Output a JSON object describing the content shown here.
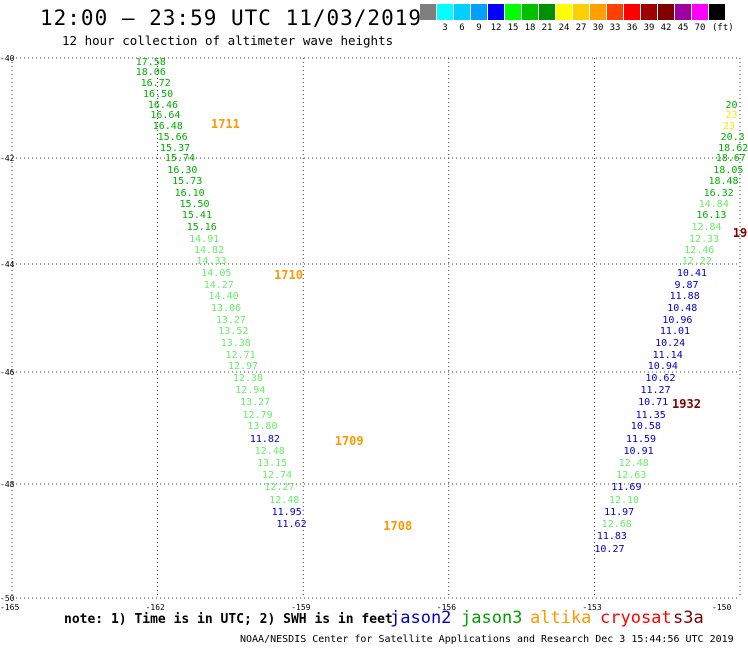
{
  "title": "12:00 – 23:59 UTC 11/03/2019",
  "subtitle": "12 hour collection of altimeter wave heights",
  "legend": {
    "unit": "(ft)",
    "bins": [
      {
        "label": "",
        "color": "#7f7f7f"
      },
      {
        "label": "3",
        "color": "#00ffff"
      },
      {
        "label": "6",
        "color": "#00d0ff"
      },
      {
        "label": "9",
        "color": "#00a0ff"
      },
      {
        "label": "12",
        "color": "#0000ff"
      },
      {
        "label": "15",
        "color": "#00ff00"
      },
      {
        "label": "18",
        "color": "#00c000"
      },
      {
        "label": "21",
        "color": "#009000"
      },
      {
        "label": "24",
        "color": "#ffff00"
      },
      {
        "label": "27",
        "color": "#ffd000"
      },
      {
        "label": "30",
        "color": "#ffa000"
      },
      {
        "label": "33",
        "color": "#ff4000"
      },
      {
        "label": "36",
        "color": "#ff0000"
      },
      {
        "label": "39",
        "color": "#a00000"
      },
      {
        "label": "42",
        "color": "#800000"
      },
      {
        "label": "45",
        "color": "#a000a0"
      },
      {
        "label": "70",
        "color": "#ff00ff"
      },
      {
        "label": "",
        "color": "#000000"
      }
    ]
  },
  "map": {
    "lat_labels": [
      "-40",
      "-42",
      "-44",
      "-46",
      "-48",
      "-50"
    ],
    "lon_labels": [
      "-165",
      "-162",
      "-159",
      "-156",
      "-153",
      "-150"
    ]
  },
  "chart_data": {
    "type": "scatter",
    "xlabel": "",
    "ylabel": "",
    "grid": true,
    "xlim": [
      -165,
      -150
    ],
    "ylim": [
      -50,
      -40
    ],
    "colors": {
      "green_dark": "#00b000",
      "green_light": "#66ee66",
      "blue": "#0000cc",
      "yellow": "#f0f000",
      "orange": "#ff9900",
      "maroon": "#800000"
    },
    "tracks": [
      {
        "name": "jason3",
        "points": [
          {
            "lon": -162.45,
            "lat": -40.1,
            "value": "17.58",
            "color": "green_dark"
          },
          {
            "lon": -162.45,
            "lat": -40.3,
            "value": "18.06",
            "color": "green_dark"
          },
          {
            "lon": -162.35,
            "lat": -40.51,
            "value": "16.72",
            "color": "green_dark"
          },
          {
            "lon": -162.3,
            "lat": -40.73,
            "value": "16.50",
            "color": "green_dark"
          },
          {
            "lon": -162.2,
            "lat": -40.95,
            "value": "16.46",
            "color": "green_dark"
          },
          {
            "lon": -162.15,
            "lat": -41.16,
            "value": "16.64",
            "color": "green_dark"
          },
          {
            "lon": -162.1,
            "lat": -41.38,
            "value": "16.48",
            "color": "green_dark"
          },
          {
            "lon": -162.0,
            "lat": -41.59,
            "value": "15.66",
            "color": "green_dark"
          },
          {
            "lon": -161.95,
            "lat": -41.81,
            "value": "15.37",
            "color": "green_dark"
          },
          {
            "lon": -161.85,
            "lat": -42.02,
            "value": "15.74",
            "color": "green_dark"
          },
          {
            "lon": -161.8,
            "lat": -42.24,
            "value": "16.30",
            "color": "green_dark"
          },
          {
            "lon": -161.7,
            "lat": -42.46,
            "value": "15.73",
            "color": "green_dark"
          },
          {
            "lon": -161.65,
            "lat": -42.67,
            "value": "16.10",
            "color": "green_dark"
          },
          {
            "lon": -161.55,
            "lat": -42.89,
            "value": "15.50",
            "color": "green_dark"
          },
          {
            "lon": -161.5,
            "lat": -43.1,
            "value": "15.41",
            "color": "green_dark"
          },
          {
            "lon": -161.4,
            "lat": -43.32,
            "value": "15.16",
            "color": "green_dark"
          },
          {
            "lon": -161.35,
            "lat": -43.54,
            "value": "14.91",
            "color": "green_light"
          },
          {
            "lon": -161.25,
            "lat": -43.75,
            "value": "14.82",
            "color": "green_light"
          },
          {
            "lon": -161.2,
            "lat": -43.97,
            "value": "14.33",
            "color": "green_light"
          },
          {
            "lon": -161.1,
            "lat": -44.18,
            "value": "14.05",
            "color": "green_light"
          },
          {
            "lon": -161.05,
            "lat": -44.4,
            "value": "14.27",
            "color": "green_light"
          },
          {
            "lon": -160.95,
            "lat": -44.62,
            "value": "14.40",
            "color": "green_light"
          },
          {
            "lon": -160.9,
            "lat": -44.83,
            "value": "13.06",
            "color": "green_light"
          },
          {
            "lon": -160.8,
            "lat": -45.05,
            "value": "13.27",
            "color": "green_light"
          },
          {
            "lon": -160.75,
            "lat": -45.26,
            "value": "13.52",
            "color": "green_light"
          },
          {
            "lon": -160.7,
            "lat": -45.48,
            "value": "13.38",
            "color": "green_light"
          },
          {
            "lon": -160.6,
            "lat": -45.7,
            "value": "12.71",
            "color": "green_light"
          },
          {
            "lon": -160.55,
            "lat": -45.91,
            "value": "12.97",
            "color": "green_light"
          },
          {
            "lon": -160.45,
            "lat": -46.13,
            "value": "12.38",
            "color": "green_light"
          },
          {
            "lon": -160.4,
            "lat": -46.34,
            "value": "12.94",
            "color": "green_light"
          },
          {
            "lon": -160.3,
            "lat": -46.56,
            "value": "13.27",
            "color": "green_light"
          },
          {
            "lon": -160.25,
            "lat": -46.78,
            "value": "12.79",
            "color": "green_light"
          },
          {
            "lon": -160.15,
            "lat": -46.99,
            "value": "13.80",
            "color": "green_light"
          },
          {
            "lon": -160.1,
            "lat": -47.21,
            "value": "11.82",
            "color": "blue"
          },
          {
            "lon": -160.0,
            "lat": -47.42,
            "value": "12.48",
            "color": "green_light"
          },
          {
            "lon": -159.95,
            "lat": -47.64,
            "value": "13.15",
            "color": "green_light"
          },
          {
            "lon": -159.85,
            "lat": -47.86,
            "value": "12.74",
            "color": "green_light"
          },
          {
            "lon": -159.8,
            "lat": -48.07,
            "value": "12.27",
            "color": "green_light"
          },
          {
            "lon": -159.7,
            "lat": -48.29,
            "value": "12.48",
            "color": "green_light"
          },
          {
            "lon": -159.65,
            "lat": -48.5,
            "value": "11.95",
            "color": "blue"
          },
          {
            "lon": -159.55,
            "lat": -48.72,
            "value": "11.62",
            "color": "blue"
          }
        ]
      },
      {
        "name": "jason3-east",
        "points": [
          {
            "lon": -150.3,
            "lat": -40.95,
            "value": "20",
            "color": "green_dark"
          },
          {
            "lon": -150.3,
            "lat": -41.16,
            "value": "23",
            "color": "yellow"
          },
          {
            "lon": -150.35,
            "lat": -41.38,
            "value": "23",
            "color": "yellow"
          },
          {
            "lon": -150.4,
            "lat": -41.59,
            "value": "20.3",
            "color": "green_dark"
          },
          {
            "lon": -150.45,
            "lat": -41.81,
            "value": "18.62",
            "color": "green_dark"
          },
          {
            "lon": -150.5,
            "lat": -42.02,
            "value": "18.67",
            "color": "green_dark"
          },
          {
            "lon": -150.55,
            "lat": -42.24,
            "value": "18.05",
            "color": "green_dark"
          },
          {
            "lon": -150.65,
            "lat": -42.46,
            "value": "18.48",
            "color": "green_dark"
          },
          {
            "lon": -150.75,
            "lat": -42.67,
            "value": "16.32",
            "color": "green_dark"
          },
          {
            "lon": -150.85,
            "lat": -42.89,
            "value": "14.84",
            "color": "green_light"
          },
          {
            "lon": -150.9,
            "lat": -43.1,
            "value": "16.13",
            "color": "green_dark"
          },
          {
            "lon": -151.0,
            "lat": -43.32,
            "value": "12.84",
            "color": "green_light"
          },
          {
            "lon": -151.05,
            "lat": -43.54,
            "value": "12.33",
            "color": "green_light"
          },
          {
            "lon": -151.15,
            "lat": -43.75,
            "value": "12.46",
            "color": "green_light"
          },
          {
            "lon": -151.2,
            "lat": -43.97,
            "value": "12.22",
            "color": "green_light"
          },
          {
            "lon": -151.3,
            "lat": -44.18,
            "value": "10.41",
            "color": "blue"
          },
          {
            "lon": -151.35,
            "lat": -44.4,
            "value": "9.87",
            "color": "blue"
          },
          {
            "lon": -151.45,
            "lat": -44.62,
            "value": "11.88",
            "color": "blue"
          },
          {
            "lon": -151.5,
            "lat": -44.83,
            "value": "10.48",
            "color": "blue"
          },
          {
            "lon": -151.6,
            "lat": -45.05,
            "value": "10.96",
            "color": "blue"
          },
          {
            "lon": -151.65,
            "lat": -45.26,
            "value": "11.01",
            "color": "blue"
          },
          {
            "lon": -151.75,
            "lat": -45.48,
            "value": "10.24",
            "color": "blue"
          },
          {
            "lon": -151.8,
            "lat": -45.7,
            "value": "11.14",
            "color": "blue"
          },
          {
            "lon": -151.9,
            "lat": -45.91,
            "value": "10.94",
            "color": "blue"
          },
          {
            "lon": -151.95,
            "lat": -46.13,
            "value": "10.62",
            "color": "blue"
          },
          {
            "lon": -152.05,
            "lat": -46.34,
            "value": "11.27",
            "color": "blue"
          },
          {
            "lon": -152.1,
            "lat": -46.56,
            "value": "10.71",
            "color": "blue"
          },
          {
            "lon": -152.15,
            "lat": -46.78,
            "value": "11.35",
            "color": "blue"
          },
          {
            "lon": -152.25,
            "lat": -46.99,
            "value": "10.58",
            "color": "blue"
          },
          {
            "lon": -152.35,
            "lat": -47.21,
            "value": "11.59",
            "color": "blue"
          },
          {
            "lon": -152.4,
            "lat": -47.42,
            "value": "10.91",
            "color": "blue"
          },
          {
            "lon": -152.5,
            "lat": -47.64,
            "value": "12.48",
            "color": "green_light"
          },
          {
            "lon": -152.55,
            "lat": -47.86,
            "value": "12.63",
            "color": "green_light"
          },
          {
            "lon": -152.65,
            "lat": -48.07,
            "value": "11.69",
            "color": "blue"
          },
          {
            "lon": -152.7,
            "lat": -48.29,
            "value": "12.10",
            "color": "green_light"
          },
          {
            "lon": -152.8,
            "lat": -48.5,
            "value": "11.97",
            "color": "blue"
          },
          {
            "lon": -152.85,
            "lat": -48.72,
            "value": "12.68",
            "color": "green_light"
          },
          {
            "lon": -152.95,
            "lat": -48.93,
            "value": "11.83",
            "color": "blue"
          },
          {
            "lon": -153.0,
            "lat": -49.15,
            "value": "10.27",
            "color": "blue"
          }
        ]
      }
    ],
    "pass_labels": [
      {
        "lon": -160.9,
        "lat": -41.3,
        "text": "1711",
        "color": "orange"
      },
      {
        "lon": -159.6,
        "lat": -44.18,
        "text": "1710",
        "color": "orange"
      },
      {
        "lon": -158.35,
        "lat": -47.21,
        "text": "1709",
        "color": "orange"
      },
      {
        "lon": -157.35,
        "lat": -48.72,
        "text": "1708",
        "color": "orange"
      },
      {
        "lon": -151.4,
        "lat": -46.56,
        "text": "1932",
        "color": "maroon"
      },
      {
        "lon": -150.15,
        "lat": -43.4,
        "text": "19",
        "color": "maroon"
      }
    ]
  },
  "note": "note: 1) Time is in UTC; 2) SWH is in feet",
  "satellites": [
    {
      "name": "jason2",
      "color": "#0000cc"
    },
    {
      "name": "jason3",
      "color": "#00a000"
    },
    {
      "name": "altika",
      "color": "#ff9900"
    },
    {
      "name": "cryosat",
      "color": "#ff0000"
    },
    {
      "name": "s3a",
      "color": "#800000"
    }
  ],
  "credit": "NOAA/NESDIS Center for Satellite Applications and Research    Dec  3 15:44:56 UTC 2019"
}
